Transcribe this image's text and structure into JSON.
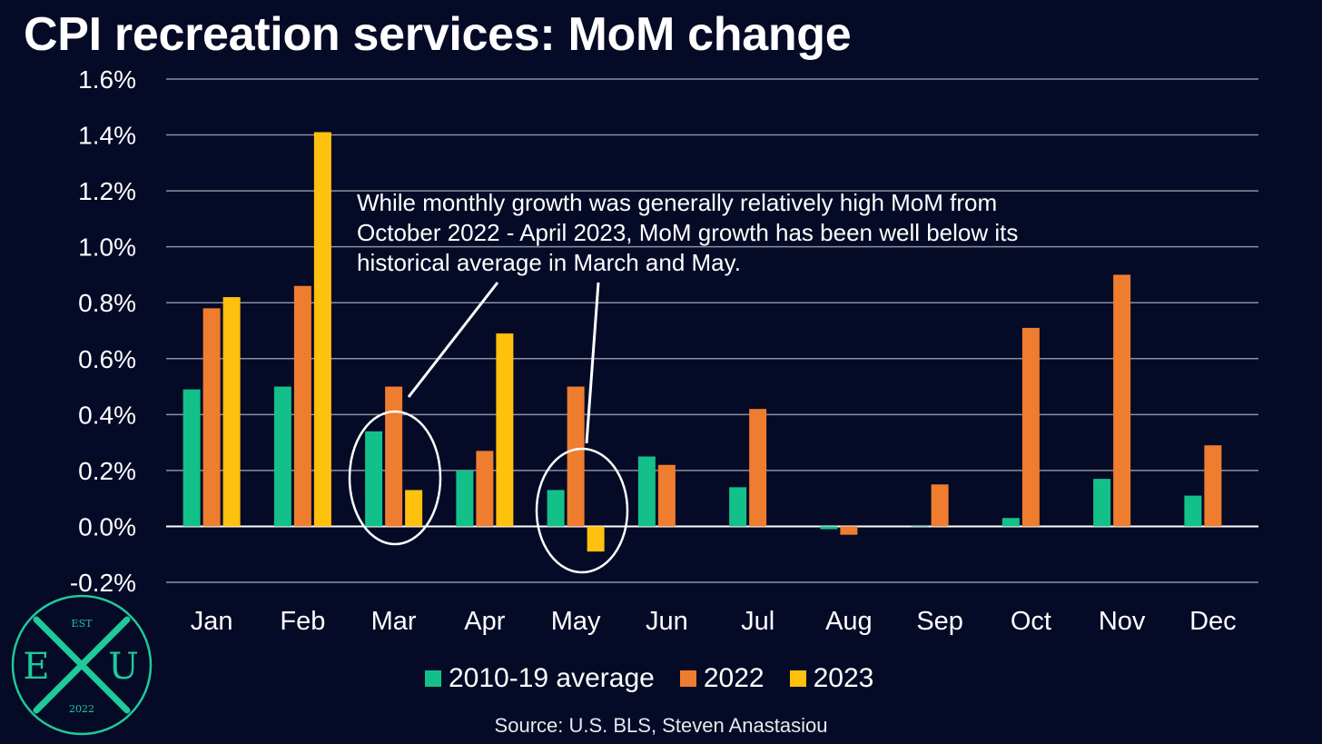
{
  "title": "CPI recreation services: MoM change",
  "annotation": "While monthly growth was generally relatively high MoM from October 2022 - April 2023, MoM growth has been well below its historical average in March and May.",
  "source": "Source: U.S. BLS, Steven Anastasiou",
  "logo": {
    "top": "EST",
    "left": "E",
    "right": "U",
    "bottom": "2022"
  },
  "colors": {
    "background": "#050a26",
    "grid": "#8c8f9e",
    "avg": "#14c08a",
    "y2022": "#ef7d2f",
    "y2023": "#fec10e",
    "logo": "#1fc99a"
  },
  "chart_data": {
    "type": "bar",
    "title": "CPI recreation services: MoM change",
    "categories": [
      "Jan",
      "Feb",
      "Mar",
      "Apr",
      "May",
      "Jun",
      "Jul",
      "Aug",
      "Sep",
      "Oct",
      "Nov",
      "Dec"
    ],
    "series": [
      {
        "name": "2010-19 average",
        "color": "#14c08a",
        "values": [
          0.49,
          0.5,
          0.34,
          0.2,
          0.13,
          0.25,
          0.14,
          -0.01,
          0.0,
          0.03,
          0.17,
          0.11
        ]
      },
      {
        "name": "2022",
        "color": "#ef7d2f",
        "values": [
          0.78,
          0.86,
          0.5,
          0.27,
          0.5,
          0.22,
          0.42,
          -0.03,
          0.15,
          0.71,
          0.9,
          0.29
        ]
      },
      {
        "name": "2023",
        "color": "#fec10e",
        "values": [
          0.82,
          1.41,
          0.13,
          0.69,
          -0.09,
          null,
          null,
          null,
          null,
          null,
          null,
          null
        ]
      }
    ],
    "yticks": [
      "-0.2%",
      "0.0%",
      "0.2%",
      "0.4%",
      "0.6%",
      "0.8%",
      "1.0%",
      "1.2%",
      "1.4%",
      "1.6%"
    ],
    "ylim": [
      -0.2,
      1.6
    ],
    "ylabel": "",
    "xlabel": "",
    "grid": true,
    "legend_position": "bottom",
    "highlighted_categories": [
      "Mar",
      "May"
    ]
  }
}
